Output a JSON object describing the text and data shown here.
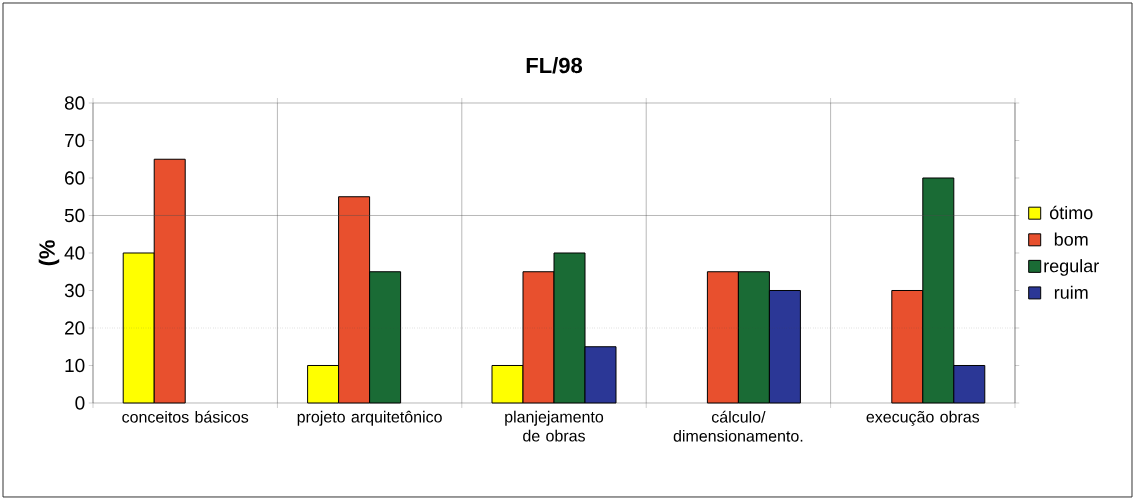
{
  "chart_data": {
    "type": "bar",
    "title": "FL/98",
    "ylabel": "(%",
    "categories": [
      "conceitos básicos",
      "projeto arquitetônico",
      "planjejamento de obras",
      "cálculo/ dimensionamento.",
      "execução obras"
    ],
    "series": [
      {
        "name": "ótimo",
        "color": "#ffff00",
        "values": [
          40,
          10,
          10,
          null,
          null
        ]
      },
      {
        "name": "bom",
        "color": "#e8502e",
        "values": [
          65,
          55,
          35,
          35,
          30
        ]
      },
      {
        "name": "regular",
        "color": "#1a6b35",
        "values": [
          null,
          35,
          40,
          35,
          60
        ]
      },
      {
        "name": "ruim",
        "color": "#2b3796",
        "values": [
          null,
          null,
          15,
          30,
          10
        ]
      }
    ],
    "ylim": [
      0,
      80
    ],
    "yticks": [
      0,
      10,
      20,
      30,
      40,
      50,
      60,
      70,
      80
    ],
    "grid": "x",
    "legend": "right",
    "ref_lines": [
      {
        "axis": "y",
        "value": 20,
        "line_style": "dotted"
      },
      {
        "axis": "y",
        "value": 50,
        "line_style": "solid"
      }
    ]
  }
}
